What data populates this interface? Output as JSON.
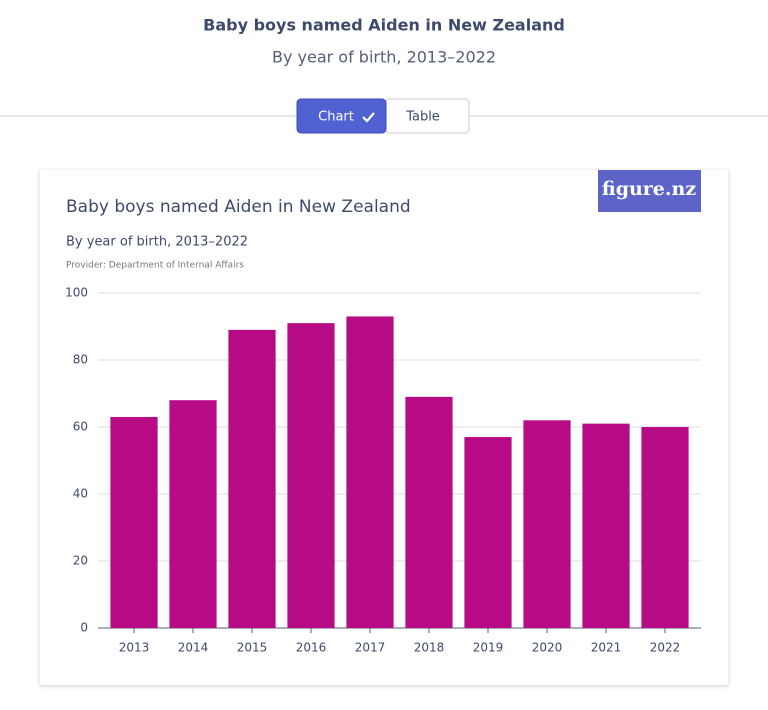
{
  "header": {
    "title": "Baby boys named Aiden in New Zealand",
    "subtitle": "By year of birth, 2013–2022"
  },
  "toggle": {
    "options": [
      "Chart",
      "Table"
    ]
  },
  "logo": "figure.nz",
  "chart_data": {
    "type": "bar",
    "title": "Baby boys named Aiden in New Zealand",
    "subtitle": "By year of birth, 2013–2022",
    "source": "Provider: Department of Internal Affairs",
    "categories": [
      "2013",
      "2014",
      "2015",
      "2016",
      "2017",
      "2018",
      "2019",
      "2020",
      "2021",
      "2022"
    ],
    "values": [
      63,
      68,
      89,
      91,
      93,
      69,
      57,
      62,
      61,
      60
    ],
    "color": "#b70b86",
    "ylim": [
      0,
      100
    ],
    "yticks": [
      0,
      20,
      40,
      60,
      80,
      100
    ],
    "grid": true
  }
}
